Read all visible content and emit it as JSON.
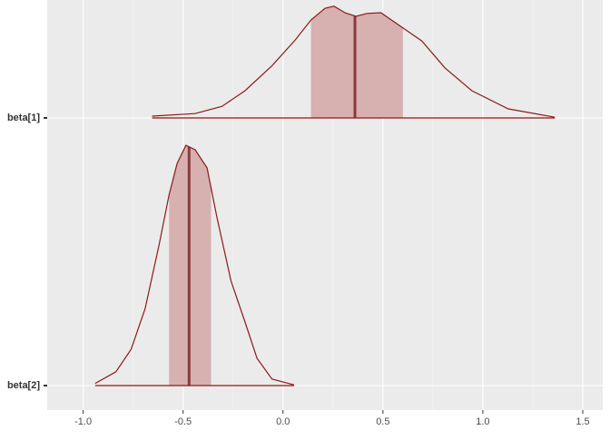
{
  "chart_data": {
    "type": "ridgeline",
    "categories": [
      "beta[1]",
      "beta[2]"
    ],
    "densities": [
      {
        "x": [
          -0.655,
          -0.44,
          -0.305,
          -0.19,
          -0.055,
          0.06,
          0.14,
          0.21,
          0.255,
          0.31,
          0.365,
          0.42,
          0.49,
          0.595,
          0.695,
          0.81,
          0.945,
          1.127,
          1.36
        ],
        "values": [
          0.025,
          0.06,
          0.16,
          0.375,
          0.72,
          1.07,
          1.35,
          1.51,
          1.54,
          1.45,
          1.4,
          1.44,
          1.45,
          1.25,
          1.06,
          0.69,
          0.375,
          0.125,
          0.01
        ],
        "interval": [
          0.14,
          0.6
        ],
        "median": 0.36
      },
      {
        "x": [
          -0.94,
          -0.836,
          -0.76,
          -0.69,
          -0.62,
          -0.57,
          -0.53,
          -0.486,
          -0.44,
          -0.38,
          -0.33,
          -0.26,
          -0.19,
          -0.13,
          -0.055,
          0.055
        ],
        "values": [
          0.03,
          0.19,
          0.5,
          1.06,
          1.94,
          2.63,
          3.06,
          3.31,
          3.25,
          3.0,
          2.31,
          1.44,
          0.875,
          0.375,
          0.09,
          0.01
        ],
        "interval": [
          -0.57,
          -0.36
        ],
        "median": -0.47
      }
    ],
    "xlim": [
      -1.18,
      1.6
    ],
    "xticks": [
      {
        "value": -1,
        "label": "-1.0"
      },
      {
        "value": -0.5,
        "label": "-0.5"
      },
      {
        "value": 0,
        "label": "0.0"
      },
      {
        "value": 0.5,
        "label": "0.5"
      },
      {
        "value": 1,
        "label": "1.0"
      },
      {
        "value": 1.5,
        "label": "1.5"
      }
    ],
    "grid": true,
    "line_color": "#8b1a1a",
    "fill_color": "#d7b0b0",
    "median_color": "#8b3a3a"
  }
}
